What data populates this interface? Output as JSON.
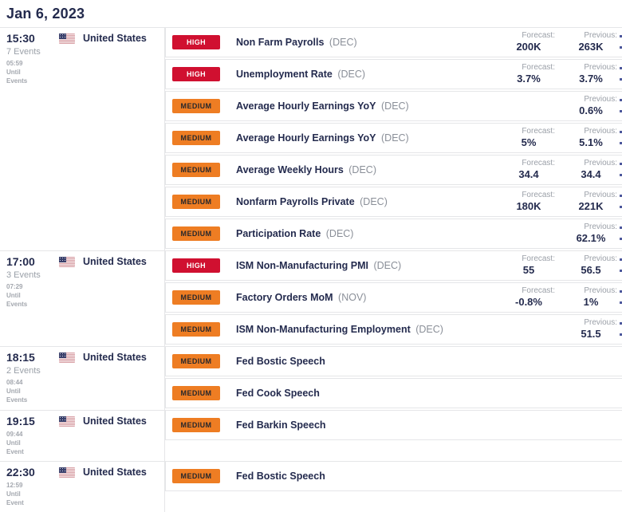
{
  "header": {
    "date": "Jan 6, 2023"
  },
  "labels": {
    "forecast": "Forecast:",
    "previous": "Previous:"
  },
  "importance_labels": {
    "high": "HIGH",
    "medium": "MEDIUM"
  },
  "colors": {
    "high_badge": "#d01030",
    "medium_badge": "#ee7d23",
    "navy_text": "#242b4e",
    "muted_text": "#9ba0a8",
    "border": "#e5e6e8"
  },
  "groups": [
    {
      "time": "15:30",
      "events_count": "7 Events",
      "countdown": "05:59",
      "until_line1": "Until",
      "until_line2": "Events",
      "country": "United States",
      "flag": "us-flag",
      "events": [
        {
          "importance": "high",
          "name": "Non Farm Payrolls",
          "period": "(DEC)",
          "forecast": "200K",
          "previous": "263K"
        },
        {
          "importance": "high",
          "name": "Unemployment Rate",
          "period": "(DEC)",
          "forecast": "3.7%",
          "previous": "3.7%"
        },
        {
          "importance": "medium",
          "name": "Average Hourly Earnings YoY",
          "period": "(DEC)",
          "forecast": null,
          "previous": "0.6%"
        },
        {
          "importance": "medium",
          "name": "Average Hourly Earnings YoY",
          "period": "(DEC)",
          "forecast": "5%",
          "previous": "5.1%"
        },
        {
          "importance": "medium",
          "name": "Average Weekly Hours",
          "period": "(DEC)",
          "forecast": "34.4",
          "previous": "34.4"
        },
        {
          "importance": "medium",
          "name": "Nonfarm Payrolls Private",
          "period": "(DEC)",
          "forecast": "180K",
          "previous": "221K"
        },
        {
          "importance": "medium",
          "name": "Participation Rate",
          "period": "(DEC)",
          "forecast": null,
          "previous": "62.1%"
        }
      ]
    },
    {
      "time": "17:00",
      "events_count": "3 Events",
      "countdown": "07:29",
      "until_line1": "Until",
      "until_line2": "Events",
      "country": "United States",
      "flag": "us-flag",
      "events": [
        {
          "importance": "high",
          "name": "ISM Non-Manufacturing PMI",
          "period": "(DEC)",
          "forecast": "55",
          "previous": "56.5"
        },
        {
          "importance": "medium",
          "name": "Factory Orders MoM",
          "period": "(NOV)",
          "forecast": "-0.8%",
          "previous": "1%"
        },
        {
          "importance": "medium",
          "name": "ISM Non-Manufacturing Employment",
          "period": "(DEC)",
          "forecast": null,
          "previous": "51.5"
        }
      ]
    },
    {
      "time": "18:15",
      "events_count": "2 Events",
      "countdown": "08:44",
      "until_line1": "Until",
      "until_line2": "Events",
      "country": "United States",
      "flag": "us-flag",
      "events": [
        {
          "importance": "medium",
          "name": "Fed Bostic Speech",
          "period": null,
          "forecast": null,
          "previous": null
        },
        {
          "importance": "medium",
          "name": "Fed Cook Speech",
          "period": null,
          "forecast": null,
          "previous": null
        }
      ]
    },
    {
      "time": "19:15",
      "events_count": null,
      "countdown": "09:44",
      "until_line1": "Until",
      "until_line2": "Event",
      "country": "United States",
      "flag": "us-flag",
      "events": [
        {
          "importance": "medium",
          "name": "Fed Barkin Speech",
          "period": null,
          "forecast": null,
          "previous": null
        }
      ]
    },
    {
      "time": "22:30",
      "events_count": null,
      "countdown": "12:59",
      "until_line1": "Until",
      "until_line2": "Event",
      "country": "United States",
      "flag": "us-flag",
      "events": [
        {
          "importance": "medium",
          "name": "Fed Bostic Speech",
          "period": null,
          "forecast": null,
          "previous": null
        }
      ]
    }
  ]
}
